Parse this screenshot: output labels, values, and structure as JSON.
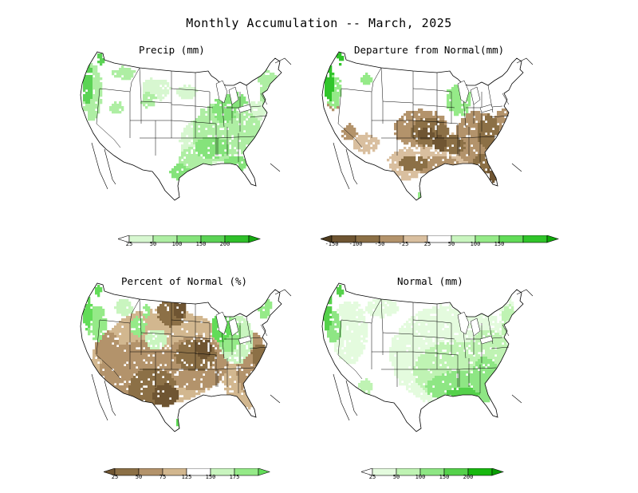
{
  "title": "Monthly Accumulation -- March, 2025",
  "panels": [
    {
      "id": "precip",
      "title": "Precip (mm)",
      "colorbar": {
        "labels": [
          "25",
          "50",
          "100",
          "150",
          "200"
        ],
        "colors": [
          "#ffffff",
          "#d7f7d0",
          "#aeeea3",
          "#85e37b",
          "#5bd355",
          "#2fc02a",
          "#14a90e"
        ]
      }
    },
    {
      "id": "departure",
      "title": "Departure from Normal(mm)",
      "colorbar": {
        "labels": [
          "-150",
          "-100",
          "-50",
          "-25",
          "25",
          "50",
          "100",
          "150"
        ],
        "colors": [
          "#4e3b1e",
          "#6f5532",
          "#8c7046",
          "#b3936b",
          "#d9bf9f",
          "#ffffff",
          "#c9f5bf",
          "#95ea88",
          "#62dc58",
          "#30c52a",
          "#0ea808"
        ]
      }
    },
    {
      "id": "percent",
      "title": "Percent of Normal (%)",
      "colorbar": {
        "labels": [
          "25",
          "50",
          "75",
          "125",
          "150",
          "175"
        ],
        "colors": [
          "#6f5532",
          "#8c7046",
          "#b3936b",
          "#d2b78f",
          "#ffffff",
          "#c9f5bf",
          "#95ea88",
          "#62dc58"
        ]
      }
    },
    {
      "id": "normal",
      "title": "Normal (mm)",
      "colorbar": {
        "labels": [
          "25",
          "50",
          "100",
          "150",
          "200"
        ],
        "colors": [
          "#ffffff",
          "#e4fbde",
          "#bff3b3",
          "#8ee684",
          "#55d14b",
          "#18b80f",
          "#0a9d05"
        ]
      }
    }
  ]
}
